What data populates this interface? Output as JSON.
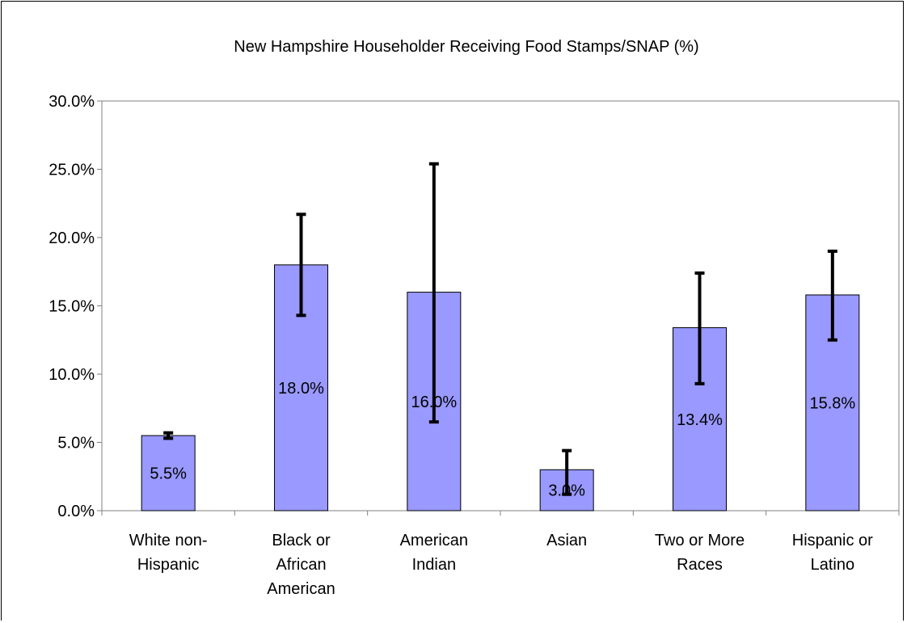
{
  "chart_data": {
    "type": "bar",
    "title": "New Hampshire Householder Receiving Food Stamps/SNAP (%)",
    "xlabel": "",
    "ylabel": "",
    "ylim": [
      0,
      0.3
    ],
    "yticks": [
      0,
      0.05,
      0.1,
      0.15,
      0.2,
      0.25,
      0.3
    ],
    "ytick_labels": [
      "0.0%",
      "5.0%",
      "10.0%",
      "15.0%",
      "20.0%",
      "25.0%",
      "30.0%"
    ],
    "grid": false,
    "legend": "none",
    "categories": [
      [
        "White non-",
        "Hispanic"
      ],
      [
        "Black or",
        "African",
        "American"
      ],
      [
        "American",
        "Indian"
      ],
      [
        "Asian"
      ],
      [
        "Two or More",
        "Races"
      ],
      [
        "Hispanic or",
        "Latino"
      ]
    ],
    "values": [
      0.055,
      0.18,
      0.16,
      0.03,
      0.134,
      0.158
    ],
    "data_labels": [
      "5.5%",
      "18.0%",
      "16.0%",
      "3.0%",
      "13.4%",
      "15.8%"
    ],
    "error_low": [
      0.053,
      0.143,
      0.065,
      0.012,
      0.093,
      0.125
    ],
    "error_high": [
      0.057,
      0.217,
      0.254,
      0.044,
      0.174,
      0.19
    ],
    "colors": {
      "bar_fill": "#9999ff",
      "bar_stroke": "#000000",
      "error_bar": "#000000",
      "axis": "#808080"
    }
  }
}
